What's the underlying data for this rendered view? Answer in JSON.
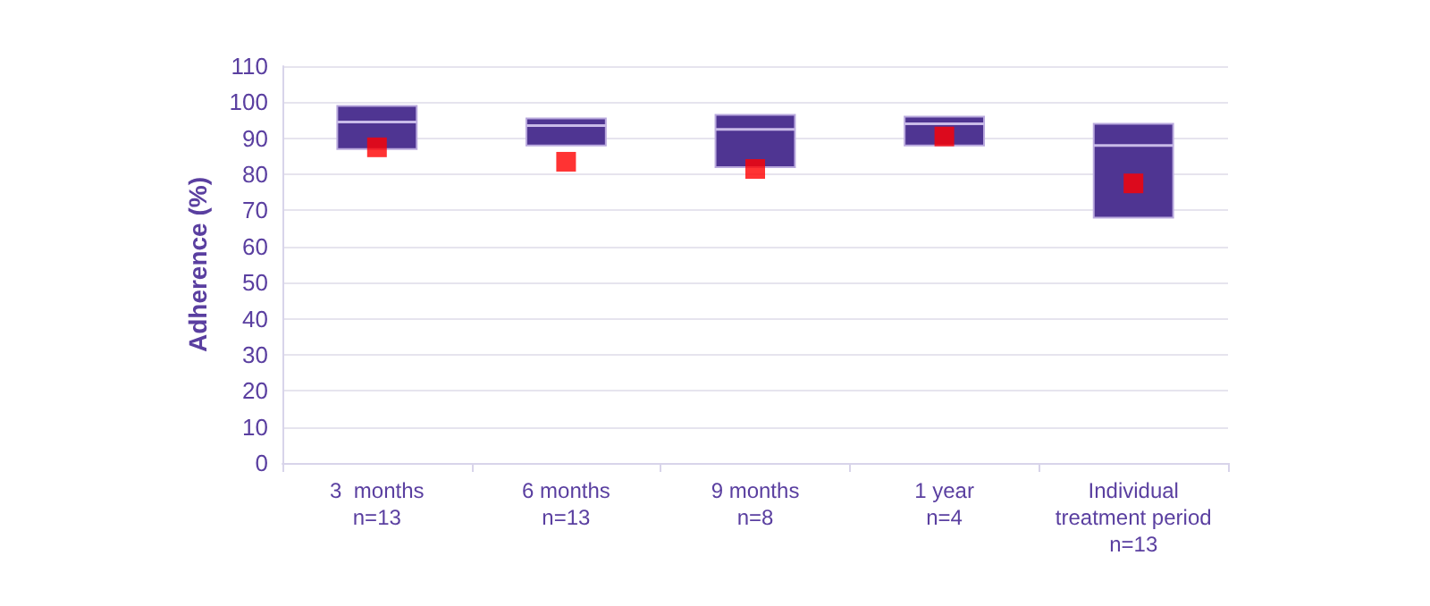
{
  "chart_data": {
    "type": "box",
    "ylabel": "Adherence (%)",
    "categories": [
      "3  months\nn=13",
      "6 months\nn=13",
      "9 months\nn=8",
      "1 year\nn=4",
      "Individual\ntreatment period\nn=13"
    ],
    "color": "#4f3592",
    "marker": "square",
    "boxes": [
      {
        "low": 87,
        "q1": 87,
        "median": 94.5,
        "q3": 99,
        "high": 99,
        "mean": 87.5
      },
      {
        "low": 88,
        "q1": 88,
        "median": 93.5,
        "q3": 95.5,
        "high": 95.5,
        "mean": 83.5
      },
      {
        "low": 82,
        "q1": 82,
        "median": 92.5,
        "q3": 96.5,
        "high": 96.5,
        "mean": 81.5
      },
      {
        "low": 88,
        "q1": 88,
        "median": 94,
        "q3": 96,
        "high": 96,
        "mean": 90.5
      },
      {
        "low": 68,
        "q1": 68,
        "median": 88,
        "q3": 94,
        "high": 94,
        "mean": 77.5
      }
    ],
    "ylim": [
      0,
      110
    ],
    "yticks": [
      0,
      10,
      20,
      30,
      40,
      50,
      60,
      70,
      80,
      90,
      100,
      110
    ],
    "grid": "y"
  }
}
